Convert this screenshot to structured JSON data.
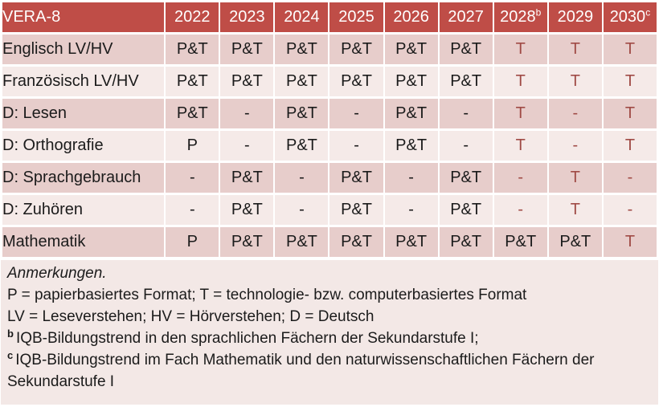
{
  "colors": {
    "header_bg": "#bf4d47",
    "row_dark": "#e7cdcb",
    "row_light": "#f5eae8",
    "notes_bg": "#f3e8e6",
    "accent_text": "#a04b46",
    "header_text": "#ffffff",
    "body_text": "#1b1b1b"
  },
  "table": {
    "header": {
      "title": "VERA-8",
      "years": [
        {
          "label": "2022",
          "sup": ""
        },
        {
          "label": "2023",
          "sup": ""
        },
        {
          "label": "2024",
          "sup": ""
        },
        {
          "label": "2025",
          "sup": ""
        },
        {
          "label": "2026",
          "sup": ""
        },
        {
          "label": "2027",
          "sup": ""
        },
        {
          "label": "2028",
          "sup": "b"
        },
        {
          "label": "2029",
          "sup": ""
        },
        {
          "label": "2030",
          "sup": "c"
        }
      ]
    },
    "rows": [
      {
        "label": "Englisch LV/HV",
        "shade": "dark",
        "cells": [
          {
            "t": "P&T",
            "red": false
          },
          {
            "t": "P&T",
            "red": false
          },
          {
            "t": "P&T",
            "red": false
          },
          {
            "t": "P&T",
            "red": false
          },
          {
            "t": "P&T",
            "red": false
          },
          {
            "t": "P&T",
            "red": false
          },
          {
            "t": "T",
            "red": true
          },
          {
            "t": "T",
            "red": true
          },
          {
            "t": "T",
            "red": true
          }
        ]
      },
      {
        "label": "Französisch LV/HV",
        "shade": "light",
        "cells": [
          {
            "t": "P&T",
            "red": false
          },
          {
            "t": "P&T",
            "red": false
          },
          {
            "t": "P&T",
            "red": false
          },
          {
            "t": "P&T",
            "red": false
          },
          {
            "t": "P&T",
            "red": false
          },
          {
            "t": "P&T",
            "red": false
          },
          {
            "t": "T",
            "red": true
          },
          {
            "t": "T",
            "red": true
          },
          {
            "t": "T",
            "red": true
          }
        ]
      },
      {
        "label": "D: Lesen",
        "shade": "dark",
        "cells": [
          {
            "t": "P&T",
            "red": false
          },
          {
            "t": "-",
            "red": false
          },
          {
            "t": "P&T",
            "red": false
          },
          {
            "t": "-",
            "red": false
          },
          {
            "t": "P&T",
            "red": false
          },
          {
            "t": "-",
            "red": false
          },
          {
            "t": "T",
            "red": true
          },
          {
            "t": "-",
            "red": true
          },
          {
            "t": "T",
            "red": true
          }
        ]
      },
      {
        "label": "D: Orthografie",
        "shade": "light",
        "cells": [
          {
            "t": "P",
            "red": false
          },
          {
            "t": "-",
            "red": false
          },
          {
            "t": "P&T",
            "red": false
          },
          {
            "t": "-",
            "red": false
          },
          {
            "t": "P&T",
            "red": false
          },
          {
            "t": "-",
            "red": false
          },
          {
            "t": "T",
            "red": true
          },
          {
            "t": "-",
            "red": true
          },
          {
            "t": "T",
            "red": true
          }
        ]
      },
      {
        "label": "D: Sprachgebrauch",
        "shade": "dark",
        "cells": [
          {
            "t": "-",
            "red": false
          },
          {
            "t": "P&T",
            "red": false
          },
          {
            "t": "-",
            "red": false
          },
          {
            "t": "P&T",
            "red": false
          },
          {
            "t": "-",
            "red": false
          },
          {
            "t": "P&T",
            "red": false
          },
          {
            "t": "-",
            "red": true
          },
          {
            "t": "T",
            "red": true
          },
          {
            "t": "-",
            "red": true
          }
        ]
      },
      {
        "label": "D: Zuhören",
        "shade": "light",
        "cells": [
          {
            "t": "-",
            "red": false
          },
          {
            "t": "P&T",
            "red": false
          },
          {
            "t": "-",
            "red": false
          },
          {
            "t": "P&T",
            "red": false
          },
          {
            "t": "-",
            "red": false
          },
          {
            "t": "P&T",
            "red": false
          },
          {
            "t": "-",
            "red": true
          },
          {
            "t": "T",
            "red": true
          },
          {
            "t": "-",
            "red": true
          }
        ]
      },
      {
        "label": "Mathematik",
        "shade": "dark",
        "cells": [
          {
            "t": "P",
            "red": false
          },
          {
            "t": "P&T",
            "red": false
          },
          {
            "t": "P&T",
            "red": false
          },
          {
            "t": "P&T",
            "red": false
          },
          {
            "t": "P&T",
            "red": false
          },
          {
            "t": "P&T",
            "red": false
          },
          {
            "t": "P&T",
            "red": false
          },
          {
            "t": "P&T",
            "red": false
          },
          {
            "t": "T",
            "red": true
          }
        ]
      }
    ]
  },
  "notes": {
    "lines": [
      {
        "sup": "",
        "italic": true,
        "text": "Anmerkungen."
      },
      {
        "sup": "",
        "italic": false,
        "text": "P = papierbasiertes Format; T = technologie- bzw. computerbasiertes Format"
      },
      {
        "sup": "",
        "italic": false,
        "text": "LV = Leseverstehen; HV = Hörverstehen; D = Deutsch"
      },
      {
        "sup": "b",
        "italic": false,
        "text": "IQB-Bildungstrend in den sprachlichen Fächern der Sekundarstufe I;"
      },
      {
        "sup": "c",
        "italic": false,
        "text": "IQB-Bildungstrend im Fach Mathematik und den naturwissenschaftlichen Fächern der Sekundarstufe I"
      }
    ]
  }
}
